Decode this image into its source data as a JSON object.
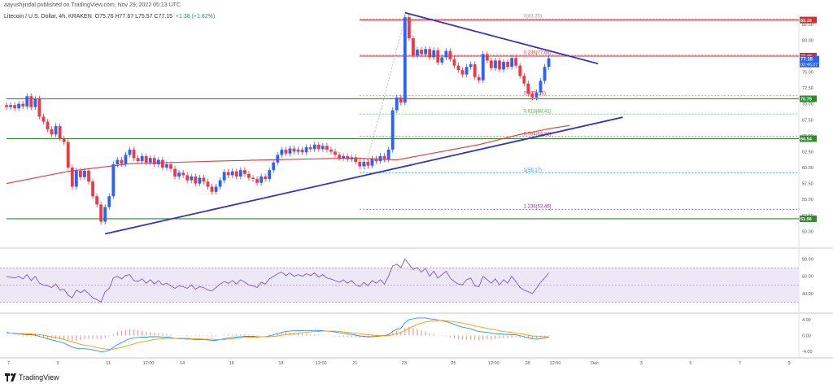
{
  "header": {
    "publish_info": "aayushjindal published on TradingView.com, Nov 29, 2022 05:13 UTC",
    "symbol": "Litecoin / U.S. Dollar, 4h, KRAKEN",
    "ohlc": "O75.76  H77.67  L75.57  C77.15",
    "change": "+1.38 (+1.82%)",
    "currency": "USD"
  },
  "footer": {
    "logo_text": "TradingView"
  },
  "colors": {
    "up": "#2962ff",
    "down": "#f23645",
    "ma": "#e53935",
    "trend": "#2d32c8",
    "hline": "#2e8b2e",
    "resistance": "#d32f2f",
    "rsi": "#7e57c2",
    "rsi_band": "#ede7f6",
    "macd": "#2196f3",
    "signal": "#ff9800",
    "hist_pos": "#ef9a9a",
    "hist_neg": "#ef9a9a"
  },
  "chart_data": {
    "type": "candlestick",
    "title": "Litecoin / U.S. Dollar, 4h, KRAKEN",
    "ylim": [
      48,
      84
    ],
    "y_ticks": [
      50.0,
      52.5,
      55.0,
      57.5,
      60.0,
      62.5,
      65.0,
      67.5,
      70.0,
      72.5,
      75.0,
      77.5,
      80.0,
      82.5
    ],
    "x_ticks": [
      {
        "label": "7",
        "i": 1
      },
      {
        "label": "9",
        "i": 13
      },
      {
        "label": "11",
        "i": 25
      },
      {
        "label": "12:00",
        "i": 34
      },
      {
        "label": "14",
        "i": 43
      },
      {
        "label": "16",
        "i": 55
      },
      {
        "label": "18",
        "i": 67
      },
      {
        "label": "12:00",
        "i": 76
      },
      {
        "label": "21",
        "i": 85
      },
      {
        "label": "23",
        "i": 97
      },
      {
        "label": "25",
        "i": 109
      },
      {
        "label": "12:00",
        "i": 118
      },
      {
        "label": "28",
        "i": 127
      },
      {
        "label": "12:00",
        "i": 133
      },
      {
        "label": "Dec",
        "i": 143
      },
      {
        "label": "3",
        "i": 155
      },
      {
        "label": "5",
        "i": 167
      },
      {
        "label": "7",
        "i": 179
      },
      {
        "label": "9",
        "i": 191
      }
    ],
    "candles": [
      {
        "o": 69.8,
        "c": 69.5
      },
      {
        "o": 69.5,
        "c": 69.8
      },
      {
        "o": 69.8,
        "c": 69.3
      },
      {
        "o": 69.3,
        "c": 70.0
      },
      {
        "o": 70.0,
        "c": 69.6
      },
      {
        "o": 69.6,
        "c": 71.2
      },
      {
        "o": 71.2,
        "c": 69.5
      },
      {
        "o": 69.5,
        "c": 70.8
      },
      {
        "o": 70.8,
        "c": 68.0
      },
      {
        "o": 68.0,
        "c": 67.2
      },
      {
        "o": 67.2,
        "c": 66.0
      },
      {
        "o": 66.0,
        "c": 65.2
      },
      {
        "o": 65.2,
        "c": 66.5
      },
      {
        "o": 66.5,
        "c": 64.5
      },
      {
        "o": 64.5,
        "c": 64.0
      },
      {
        "o": 64.0,
        "c": 60.0
      },
      {
        "o": 60.0,
        "c": 57.0
      },
      {
        "o": 57.0,
        "c": 59.5
      },
      {
        "o": 59.5,
        "c": 58.5
      },
      {
        "o": 58.5,
        "c": 59.5
      },
      {
        "o": 59.5,
        "c": 57.8
      },
      {
        "o": 57.8,
        "c": 55.5
      },
      {
        "o": 55.5,
        "c": 54.2
      },
      {
        "o": 54.2,
        "c": 51.5
      },
      {
        "o": 51.5,
        "c": 53.8
      },
      {
        "o": 53.8,
        "c": 55.5
      },
      {
        "o": 55.5,
        "c": 60.5
      },
      {
        "o": 60.5,
        "c": 61.2
      },
      {
        "o": 61.2,
        "c": 60.6
      },
      {
        "o": 60.6,
        "c": 62.0
      },
      {
        "o": 62.0,
        "c": 62.8
      },
      {
        "o": 62.8,
        "c": 61.5
      },
      {
        "o": 61.5,
        "c": 61.0
      },
      {
        "o": 61.0,
        "c": 61.8
      },
      {
        "o": 61.8,
        "c": 60.8
      },
      {
        "o": 60.8,
        "c": 61.5
      },
      {
        "o": 61.5,
        "c": 60.5
      },
      {
        "o": 60.5,
        "c": 61.2
      },
      {
        "o": 61.2,
        "c": 60.0
      },
      {
        "o": 60.0,
        "c": 60.5
      },
      {
        "o": 60.5,
        "c": 59.8
      },
      {
        "o": 59.8,
        "c": 58.6
      },
      {
        "o": 58.6,
        "c": 59.2
      },
      {
        "o": 59.2,
        "c": 58.8
      },
      {
        "o": 58.8,
        "c": 58.0
      },
      {
        "o": 58.0,
        "c": 58.6
      },
      {
        "o": 58.6,
        "c": 57.5
      },
      {
        "o": 57.5,
        "c": 58.4
      },
      {
        "o": 58.4,
        "c": 57.8
      },
      {
        "o": 57.8,
        "c": 57.0
      },
      {
        "o": 57.0,
        "c": 56.2
      },
      {
        "o": 56.2,
        "c": 57.0
      },
      {
        "o": 57.0,
        "c": 58.0
      },
      {
        "o": 58.0,
        "c": 59.3
      },
      {
        "o": 59.3,
        "c": 58.8
      },
      {
        "o": 58.8,
        "c": 59.4
      },
      {
        "o": 59.4,
        "c": 58.6
      },
      {
        "o": 58.6,
        "c": 59.6
      },
      {
        "o": 59.6,
        "c": 59.0
      },
      {
        "o": 59.0,
        "c": 58.4
      },
      {
        "o": 58.4,
        "c": 58.2
      },
      {
        "o": 58.2,
        "c": 57.6
      },
      {
        "o": 57.6,
        "c": 58.6
      },
      {
        "o": 58.6,
        "c": 58.2
      },
      {
        "o": 58.2,
        "c": 59.6
      },
      {
        "o": 59.6,
        "c": 60.8
      },
      {
        "o": 60.8,
        "c": 62.0
      },
      {
        "o": 62.0,
        "c": 62.8
      },
      {
        "o": 62.8,
        "c": 62.2
      },
      {
        "o": 62.2,
        "c": 63.0
      },
      {
        "o": 63.0,
        "c": 62.5
      },
      {
        "o": 62.5,
        "c": 62.8
      },
      {
        "o": 62.8,
        "c": 62.4
      },
      {
        "o": 62.4,
        "c": 63.2
      },
      {
        "o": 63.2,
        "c": 62.9
      },
      {
        "o": 62.9,
        "c": 63.6
      },
      {
        "o": 63.6,
        "c": 62.9
      },
      {
        "o": 62.9,
        "c": 63.4
      },
      {
        "o": 63.4,
        "c": 62.8
      },
      {
        "o": 62.8,
        "c": 62.5
      },
      {
        "o": 62.5,
        "c": 62.0
      },
      {
        "o": 62.0,
        "c": 61.5
      },
      {
        "o": 61.5,
        "c": 61.8
      },
      {
        "o": 61.8,
        "c": 61.3
      },
      {
        "o": 61.3,
        "c": 61.6
      },
      {
        "o": 61.6,
        "c": 60.9
      },
      {
        "o": 60.9,
        "c": 60.2
      },
      {
        "o": 60.2,
        "c": 60.9
      },
      {
        "o": 60.9,
        "c": 60.3
      },
      {
        "o": 60.3,
        "c": 61.4
      },
      {
        "o": 61.4,
        "c": 61.0
      },
      {
        "o": 61.0,
        "c": 61.8
      },
      {
        "o": 61.8,
        "c": 61.3
      },
      {
        "o": 61.3,
        "c": 62.8
      },
      {
        "o": 62.8,
        "c": 69.0
      },
      {
        "o": 69.0,
        "c": 71.0
      },
      {
        "o": 71.0,
        "c": 70.2
      },
      {
        "o": 70.2,
        "c": 83.6
      },
      {
        "o": 83.6,
        "c": 80.3
      },
      {
        "o": 80.3,
        "c": 77.6
      },
      {
        "o": 77.6,
        "c": 78.5
      },
      {
        "o": 78.5,
        "c": 77.8
      },
      {
        "o": 77.8,
        "c": 78.6
      },
      {
        "o": 78.6,
        "c": 77.3
      },
      {
        "o": 77.3,
        "c": 78.4
      },
      {
        "o": 78.4,
        "c": 76.5
      },
      {
        "o": 76.5,
        "c": 77.3
      },
      {
        "o": 77.3,
        "c": 78.3
      },
      {
        "o": 78.3,
        "c": 77.0
      },
      {
        "o": 77.0,
        "c": 76.0
      },
      {
        "o": 76.0,
        "c": 75.3
      },
      {
        "o": 75.3,
        "c": 74.6
      },
      {
        "o": 74.6,
        "c": 75.8
      },
      {
        "o": 75.8,
        "c": 76.2
      },
      {
        "o": 76.2,
        "c": 74.2
      },
      {
        "o": 74.2,
        "c": 73.7
      },
      {
        "o": 73.7,
        "c": 77.8
      },
      {
        "o": 77.8,
        "c": 76.8
      },
      {
        "o": 76.8,
        "c": 75.6
      },
      {
        "o": 75.6,
        "c": 76.8
      },
      {
        "o": 76.8,
        "c": 75.4
      },
      {
        "o": 75.4,
        "c": 76.6
      },
      {
        "o": 76.6,
        "c": 75.8
      },
      {
        "o": 75.8,
        "c": 77.2
      },
      {
        "o": 77.2,
        "c": 76.0
      },
      {
        "o": 76.0,
        "c": 74.4
      },
      {
        "o": 74.4,
        "c": 73.2
      },
      {
        "o": 73.2,
        "c": 71.6
      },
      {
        "o": 71.6,
        "c": 71.0
      },
      {
        "o": 71.0,
        "c": 71.8
      },
      {
        "o": 71.8,
        "c": 73.6
      },
      {
        "o": 73.6,
        "c": 75.8
      },
      {
        "o": 75.8,
        "c": 77.15
      }
    ],
    "ma": [
      {
        "i": 0,
        "y": 57.5
      },
      {
        "i": 15,
        "y": 59.4
      },
      {
        "i": 30,
        "y": 60.6
      },
      {
        "i": 50,
        "y": 61.0
      },
      {
        "i": 70,
        "y": 61.3
      },
      {
        "i": 85,
        "y": 61.5
      },
      {
        "i": 95,
        "y": 61.2
      },
      {
        "i": 105,
        "y": 62.4
      },
      {
        "i": 115,
        "y": 63.6
      },
      {
        "i": 125,
        "y": 65.2
      },
      {
        "i": 133,
        "y": 66.2
      },
      {
        "i": 137,
        "y": 66.6
      }
    ],
    "levels": [
      {
        "price": 83.16,
        "kind": "resistance",
        "label": "83.16",
        "i0": 86
      },
      {
        "price": 77.49,
        "kind": "resistance",
        "label": "77.49",
        "i0": 86
      },
      {
        "price": 70.79,
        "kind": "support",
        "label": "70.79",
        "i0": 0
      },
      {
        "price": 64.54,
        "kind": "support",
        "label": "64.54",
        "i0": 0
      },
      {
        "price": 51.96,
        "kind": "support",
        "label": "51.96",
        "i0": 0
      }
    ],
    "fib_levels": [
      {
        "price": 83.35,
        "label": "0(83.35)",
        "color": "#9e9e9e"
      },
      {
        "price": 77.64,
        "label": "0.236(77.64)",
        "color": "#e53935"
      },
      {
        "price": 71.26,
        "label": "0.5(71.26)",
        "color": "#e53935"
      },
      {
        "price": 68.41,
        "label": "0.618(68.41)",
        "color": "#4caf50"
      },
      {
        "price": 64.88,
        "label": "0.764(64.88)",
        "color": "#e53935"
      },
      {
        "price": 59.17,
        "label": "1(59.17)",
        "color": "#2196f3"
      },
      {
        "price": 53.46,
        "label": "1.236(53.46)",
        "color": "#9c27b0"
      }
    ],
    "trendlines": [
      {
        "i0": 24,
        "y0": 49.6,
        "i1": 150,
        "y1": 67.9
      },
      {
        "i0": 97,
        "y0": 84.3,
        "i1": 144,
        "y1": 76.3
      }
    ],
    "last_price": {
      "value": "77.15",
      "countdown": "02:46:27"
    },
    "rsi": {
      "y_ticks": [
        80.0,
        60.0,
        40.0
      ],
      "band": [
        70,
        30
      ],
      "values": [
        60,
        59,
        58,
        60,
        57,
        62,
        55,
        60,
        52,
        50,
        49,
        47,
        51,
        44,
        45,
        38,
        35,
        44,
        41,
        44,
        40,
        35,
        33,
        30,
        42,
        46,
        58,
        60,
        57,
        61,
        62,
        55,
        54,
        57,
        52,
        56,
        51,
        55,
        50,
        52,
        49,
        46,
        49,
        48,
        46,
        50,
        45,
        48,
        47,
        44,
        43,
        47,
        51,
        54,
        52,
        55,
        51,
        56,
        53,
        50,
        49,
        47,
        53,
        51,
        57,
        60,
        63,
        65,
        61,
        64,
        60,
        62,
        60,
        63,
        61,
        64,
        59,
        62,
        58,
        57,
        55,
        53,
        56,
        52,
        55,
        50,
        48,
        53,
        49,
        55,
        52,
        56,
        51,
        60,
        72,
        74,
        70,
        80,
        74,
        68,
        70,
        65,
        69,
        60,
        66,
        58,
        62,
        66,
        58,
        54,
        51,
        50,
        56,
        58,
        49,
        48,
        60,
        56,
        52,
        57,
        50,
        56,
        52,
        60,
        54,
        47,
        44,
        42,
        40,
        46,
        53,
        58,
        64
      ]
    },
    "macd": {
      "y_ticks": [
        4.0,
        0.0,
        -4.0
      ],
      "macd": [
        0.8,
        0.6,
        0.5,
        0.4,
        0.3,
        0.2,
        0.2,
        0.1,
        -0.2,
        -0.5,
        -0.8,
        -1.1,
        -1.3,
        -1.6,
        -1.9,
        -2.4,
        -2.9,
        -3.2,
        -3.3,
        -3.3,
        -3.4,
        -3.6,
        -3.8,
        -4.1,
        -4.0,
        -3.7,
        -3.0,
        -2.3,
        -1.8,
        -1.3,
        -0.8,
        -0.6,
        -0.5,
        -0.4,
        -0.4,
        -0.3,
        -0.3,
        -0.3,
        -0.4,
        -0.4,
        -0.5,
        -0.7,
        -0.8,
        -0.8,
        -0.9,
        -0.9,
        -1.0,
        -1.0,
        -1.0,
        -1.1,
        -1.2,
        -1.2,
        -1.0,
        -0.8,
        -0.6,
        -0.5,
        -0.4,
        -0.3,
        -0.2,
        -0.2,
        -0.2,
        -0.3,
        -0.3,
        -0.3,
        -0.1,
        0.2,
        0.5,
        0.8,
        1.0,
        1.1,
        1.2,
        1.2,
        1.2,
        1.2,
        1.2,
        1.3,
        1.2,
        1.2,
        1.1,
        1.0,
        0.9,
        0.7,
        0.6,
        0.4,
        0.3,
        0.1,
        -0.1,
        -0.2,
        -0.3,
        -0.3,
        -0.2,
        -0.1,
        0.0,
        0.2,
        1.0,
        1.6,
        1.8,
        3.2,
        4.0,
        4.2,
        4.4,
        4.4,
        4.4,
        4.2,
        4.1,
        3.9,
        3.7,
        3.5,
        3.2,
        2.8,
        2.4,
        2.1,
        1.9,
        1.7,
        1.3,
        1.0,
        0.9,
        0.8,
        0.6,
        0.5,
        0.4,
        0.3,
        0.3,
        0.2,
        0.2,
        0.0,
        -0.3,
        -0.6,
        -0.8,
        -0.9,
        -0.8,
        -0.6,
        -0.4
      ],
      "signal": [
        0.6,
        0.6,
        0.6,
        0.5,
        0.5,
        0.4,
        0.4,
        0.3,
        0.2,
        0.1,
        -0.1,
        -0.3,
        -0.5,
        -0.7,
        -1.0,
        -1.3,
        -1.6,
        -1.9,
        -2.2,
        -2.4,
        -2.6,
        -2.8,
        -3.0,
        -3.2,
        -3.4,
        -3.5,
        -3.4,
        -3.2,
        -3.0,
        -2.7,
        -2.4,
        -2.1,
        -1.8,
        -1.6,
        -1.4,
        -1.2,
        -1.0,
        -0.9,
        -0.8,
        -0.7,
        -0.7,
        -0.7,
        -0.7,
        -0.7,
        -0.7,
        -0.8,
        -0.8,
        -0.8,
        -0.9,
        -0.9,
        -0.9,
        -1.0,
        -1.0,
        -1.0,
        -0.9,
        -0.8,
        -0.7,
        -0.6,
        -0.5,
        -0.4,
        -0.4,
        -0.4,
        -0.3,
        -0.3,
        -0.3,
        -0.2,
        -0.1,
        0.1,
        0.2,
        0.4,
        0.5,
        0.6,
        0.7,
        0.8,
        0.9,
        1.0,
        1.0,
        1.1,
        1.1,
        1.1,
        1.1,
        1.0,
        0.9,
        0.8,
        0.7,
        0.6,
        0.5,
        0.3,
        0.2,
        0.1,
        0.0,
        0.0,
        -0.1,
        0.0,
        0.2,
        0.5,
        0.8,
        1.3,
        1.8,
        2.3,
        2.8,
        3.1,
        3.4,
        3.6,
        3.7,
        3.8,
        3.8,
        3.7,
        3.6,
        3.5,
        3.3,
        3.1,
        2.9,
        2.7,
        2.4,
        2.2,
        2.0,
        1.8,
        1.6,
        1.4,
        1.2,
        1.0,
        0.9,
        0.8,
        0.6,
        0.5,
        0.3,
        0.1,
        -0.1,
        -0.2,
        -0.3,
        -0.3,
        -0.3
      ]
    }
  }
}
